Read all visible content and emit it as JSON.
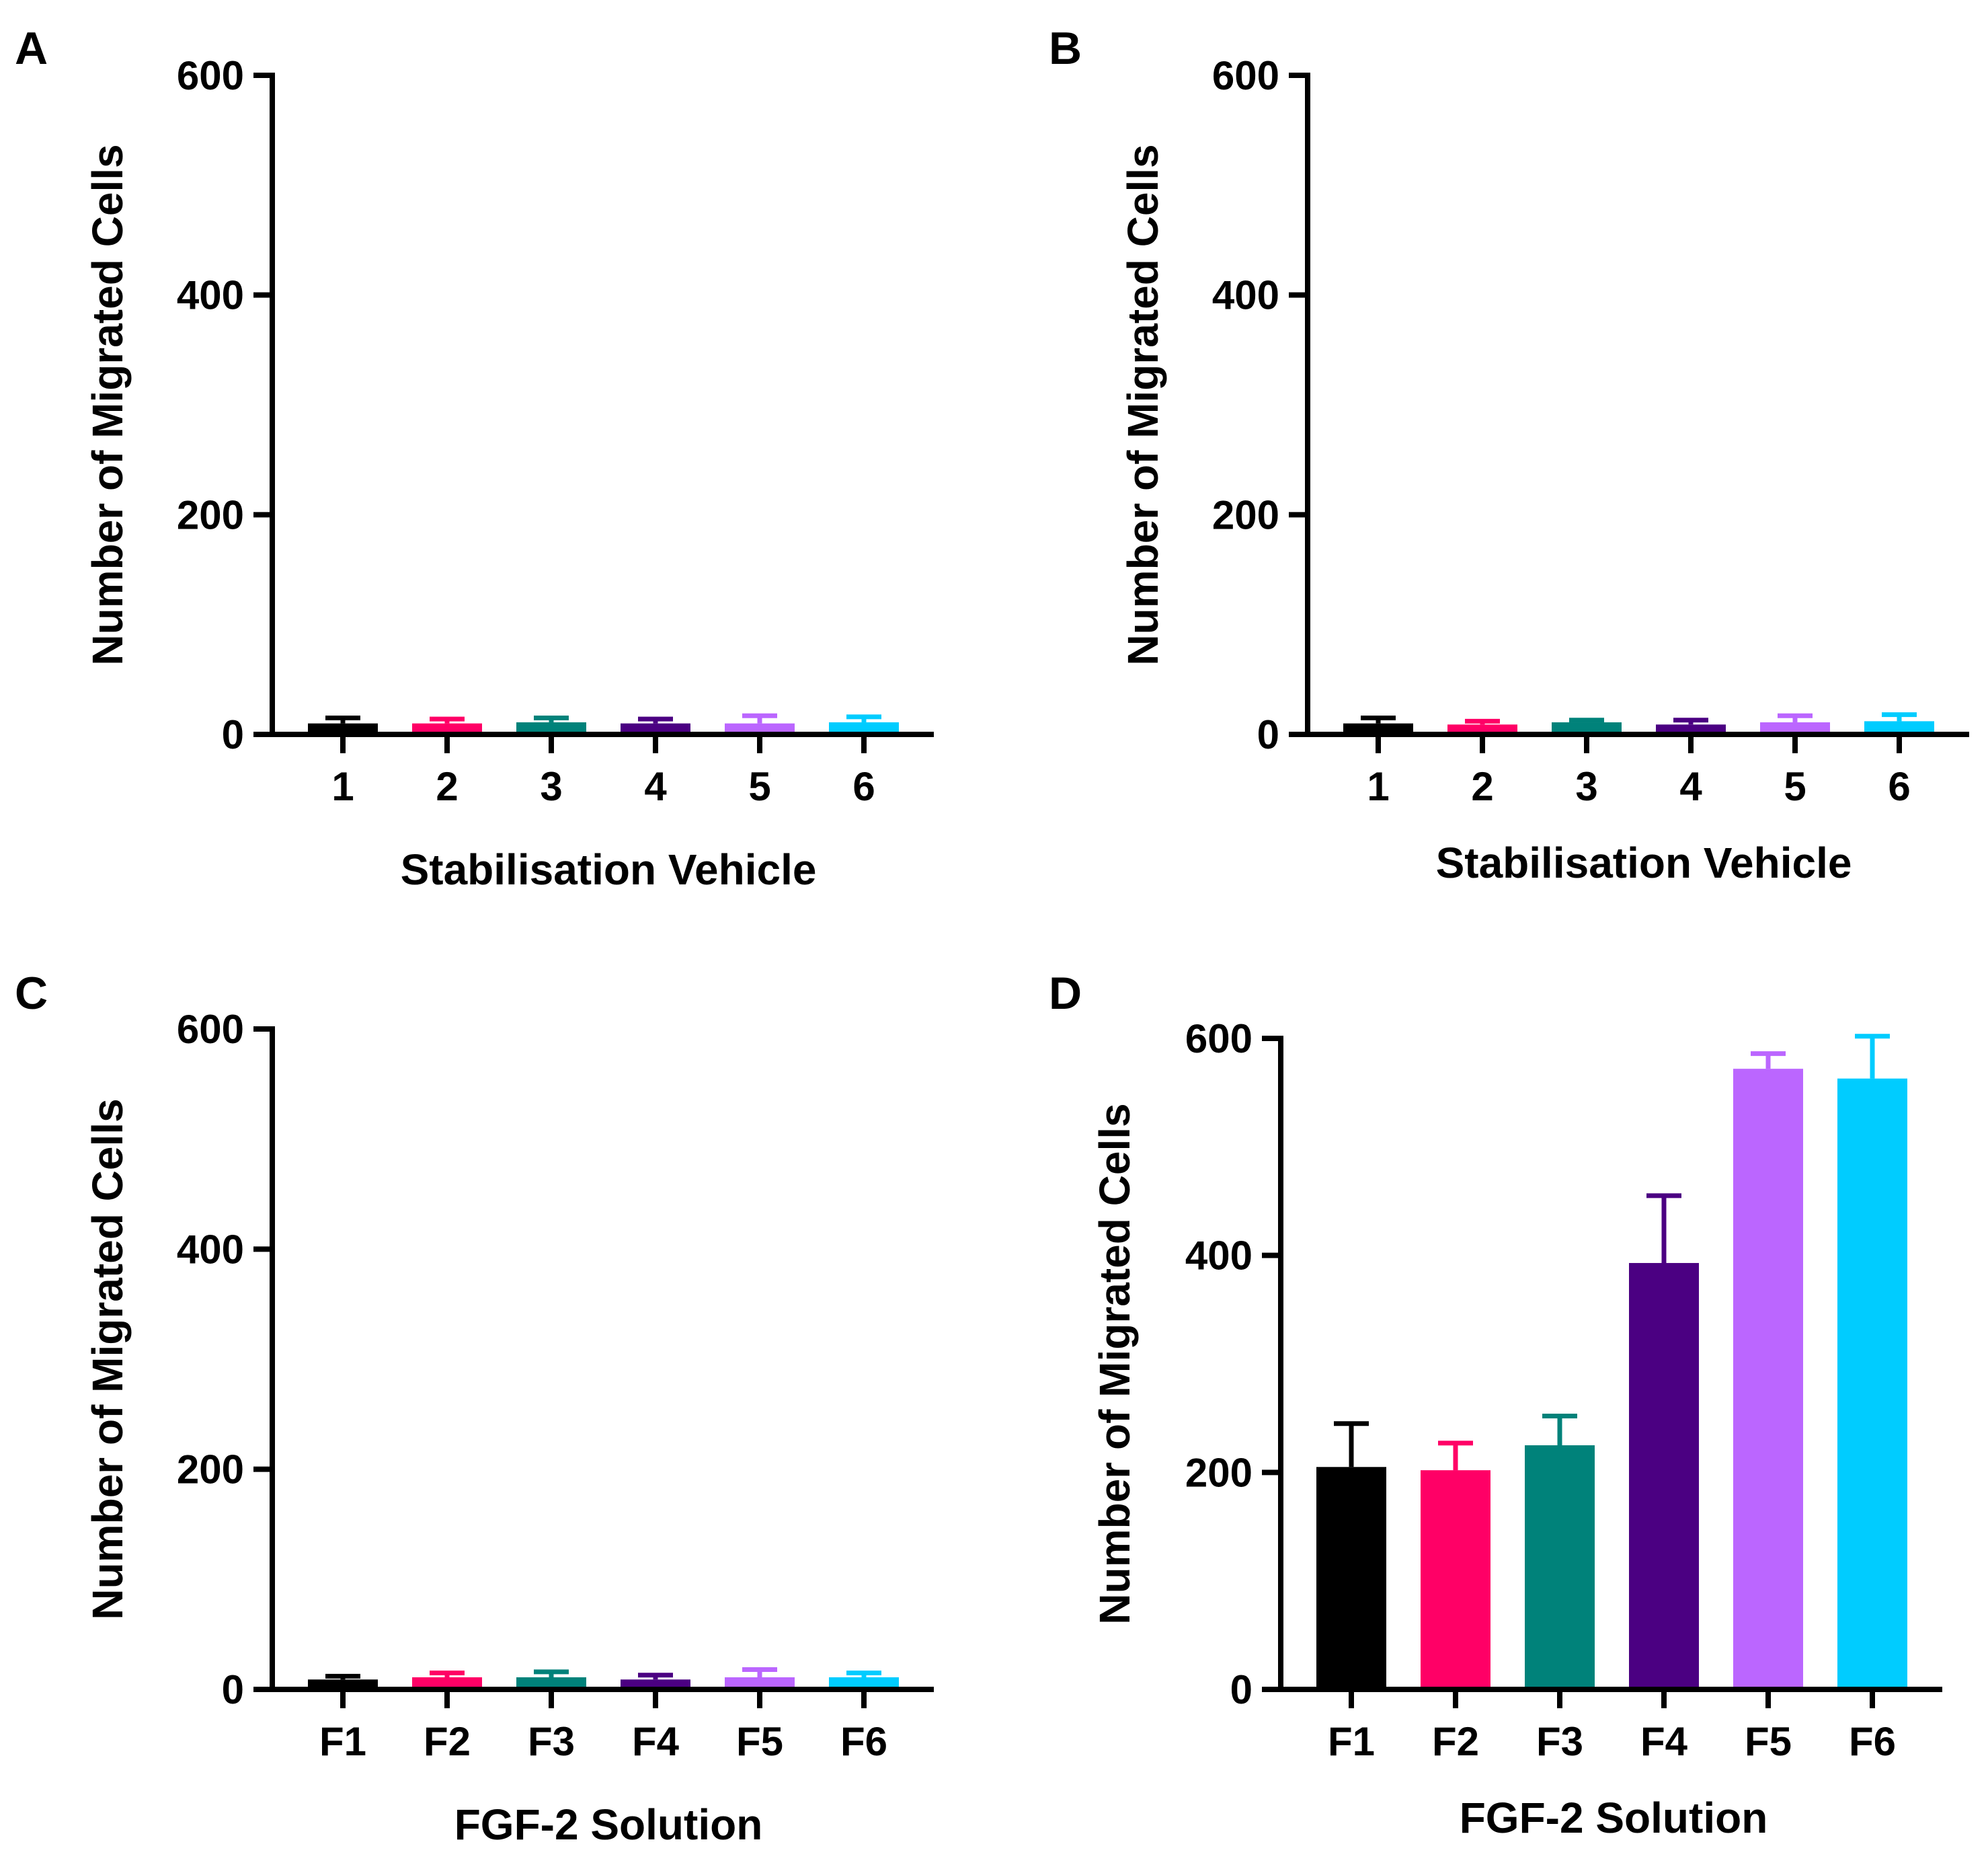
{
  "figure": {
    "panels": [
      "A",
      "B",
      "C",
      "D"
    ]
  },
  "chart_data": [
    {
      "type": "bar",
      "panel_label": "A",
      "categories": [
        "1",
        "2",
        "3",
        "4",
        "5",
        "6"
      ],
      "values": [
        10,
        10,
        11,
        10,
        10,
        11
      ],
      "errors": [
        5,
        4,
        4,
        4,
        7,
        5
      ],
      "colors": [
        "#000000",
        "#FF0066",
        "#00827A",
        "#4B0082",
        "#BB66FF",
        "#00CCFF"
      ],
      "xlabel": "Stabilisation Vehicle",
      "ylabel": "Number of Migrated Cells",
      "ylim": [
        0,
        600
      ],
      "yticks": [
        0,
        200,
        400,
        600
      ],
      "yticklabels": [
        "0",
        "200",
        "400",
        "600"
      ],
      "grid": false
    },
    {
      "type": "bar",
      "panel_label": "B",
      "categories": [
        "1",
        "2",
        "3",
        "4",
        "5",
        "6"
      ],
      "values": [
        10,
        9,
        11,
        9,
        11,
        12
      ],
      "errors": [
        5,
        3,
        2,
        4,
        6,
        6
      ],
      "colors": [
        "#000000",
        "#FF0066",
        "#00827A",
        "#4B0082",
        "#BB66FF",
        "#00CCFF"
      ],
      "xlabel": "Stabilisation Vehicle",
      "ylabel": "Number of Migrated Cells",
      "ylim": [
        0,
        600
      ],
      "yticks": [
        0,
        200,
        400,
        600
      ],
      "yticklabels": [
        "0",
        "200",
        "400",
        "600"
      ],
      "grid": false
    },
    {
      "type": "bar",
      "panel_label": "C",
      "categories": [
        "F1",
        "F2",
        "F3",
        "F4",
        "F5",
        "F6"
      ],
      "values": [
        9,
        11,
        11,
        9,
        11,
        11
      ],
      "errors": [
        3,
        4,
        5,
        4,
        7,
        4
      ],
      "colors": [
        "#000000",
        "#FF0066",
        "#00827A",
        "#4B0082",
        "#BB66FF",
        "#00CCFF"
      ],
      "xlabel": "FGF-2 Solution",
      "ylabel": "Number of Migrated Cells",
      "ylim": [
        0,
        600
      ],
      "yticks": [
        0,
        200,
        400,
        600
      ],
      "yticklabels": [
        "0",
        "200",
        "400",
        "600"
      ],
      "grid": false
    },
    {
      "type": "bar",
      "panel_label": "D",
      "categories": [
        "F1",
        "F2",
        "F3",
        "F4",
        "F5",
        "F6"
      ],
      "values": [
        205,
        202,
        225,
        393,
        572,
        563
      ],
      "errors": [
        40,
        25,
        27,
        62,
        14,
        39
      ],
      "colors": [
        "#000000",
        "#FF0066",
        "#00827A",
        "#4B0082",
        "#BB66FF",
        "#00CCFF"
      ],
      "xlabel": "FGF-2 Solution",
      "ylabel": "Number of Migrated Cells",
      "ylim": [
        0,
        600
      ],
      "yticks": [
        0,
        200,
        400,
        600
      ],
      "yticklabels": [
        "0",
        "200",
        "400",
        "600"
      ],
      "grid": false
    }
  ]
}
